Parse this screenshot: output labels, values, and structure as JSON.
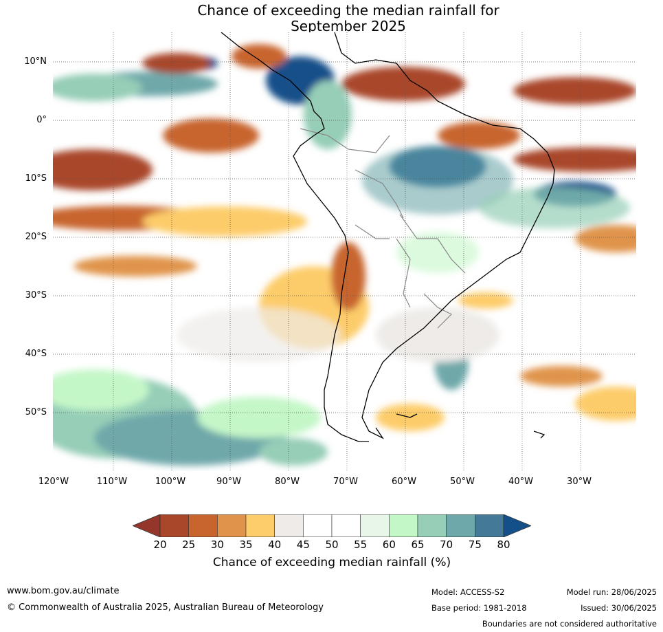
{
  "title": {
    "line1": "Chance of exceeding the median rainfall for",
    "line2": "September 2025"
  },
  "map": {
    "lat_labels": [
      "10°N",
      "0°",
      "10°S",
      "20°S",
      "30°S",
      "40°S",
      "50°S"
    ],
    "lon_labels": [
      "120°W",
      "110°W",
      "100°W",
      "90°W",
      "80°W",
      "70°W",
      "60°W",
      "50°W",
      "40°W",
      "30°W"
    ],
    "extent": {
      "lon": [
        -120,
        -20
      ],
      "lat": [
        -60,
        15
      ]
    }
  },
  "colorbar": {
    "ticks": [
      "20",
      "25",
      "30",
      "35",
      "40",
      "45",
      "50",
      "55",
      "60",
      "65",
      "70",
      "75",
      "80"
    ],
    "colors": [
      "#a9472a",
      "#c8652f",
      "#e0944b",
      "#fdcc6b",
      "#eeebe8",
      "#ffffff",
      "#ffffff",
      "#e8f5e9",
      "#c4f7c8",
      "#96ceb7",
      "#6fa8aa",
      "#447a98"
    ],
    "under_color": "#94372a",
    "over_color": "#13508a",
    "label": "Chance of exceeding median rainfall (%)"
  },
  "footer": {
    "url": "www.bom.gov.au/climate",
    "copyright": "© Commonwealth of Australia 2025, Australian Bureau of Meteorology",
    "model": "Model: ACCESS-S2",
    "base_period": "Base period: 1981-2018",
    "model_run": "Model run: 28/06/2025",
    "issued": "Issued: 30/06/2025",
    "disclaimer": "Boundaries are not considered authoritative"
  }
}
